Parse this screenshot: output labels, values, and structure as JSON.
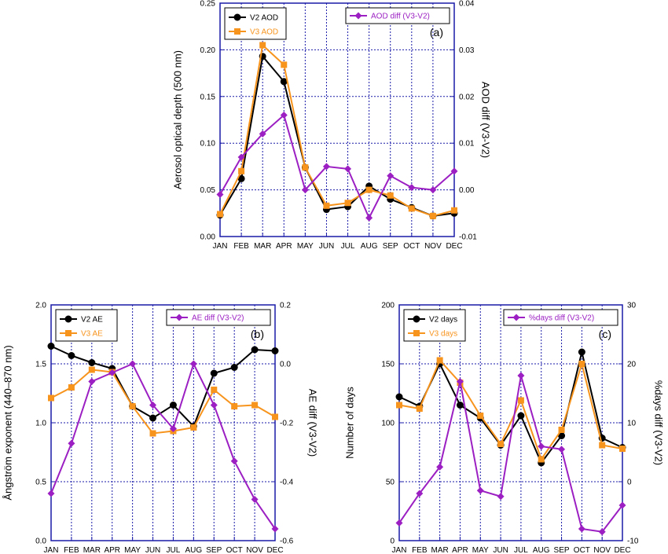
{
  "colors": {
    "v2": "#000000",
    "v3": "#f7941d",
    "diff": "#9b1fc2",
    "frame": "#1a1aa8",
    "grid": "#1a1aa8"
  },
  "chart_data": [
    {
      "type": "line",
      "panel_label": "(a)",
      "categories": [
        "JAN",
        "FEB",
        "MAR",
        "APR",
        "MAY",
        "JUN",
        "JUL",
        "AUG",
        "SEP",
        "OCT",
        "NOV",
        "DEC"
      ],
      "ylabel": "Aerosol optical depth (500 nm)",
      "y2label": "AOD diff (V3-V2)",
      "ylim": [
        0,
        0.25
      ],
      "y2lim": [
        -0.01,
        0.04
      ],
      "yticks": [
        "0.00",
        "0.05",
        "0.10",
        "0.15",
        "0.20",
        "0.25"
      ],
      "y2ticks": [
        "-0.01",
        "0.00",
        "0.01",
        "0.02",
        "0.03",
        "0.04"
      ],
      "legend_left": [
        "V2 AOD",
        "V3 AOD"
      ],
      "legend_right": "AOD diff (V3-V2)",
      "series": [
        {
          "name": "V2 AOD",
          "axis": "left",
          "marker": "circle",
          "color": "#000000",
          "values": [
            0.023,
            0.062,
            0.193,
            0.166,
            0.074,
            0.029,
            0.032,
            0.054,
            0.04,
            0.031,
            0.022,
            0.025
          ]
        },
        {
          "name": "V3 AOD",
          "axis": "left",
          "marker": "square",
          "color": "#f7941d",
          "values": [
            0.024,
            0.07,
            0.205,
            0.184,
            0.074,
            0.033,
            0.036,
            0.05,
            0.044,
            0.03,
            0.022,
            0.028
          ]
        },
        {
          "name": "AOD diff (V3-V2)",
          "axis": "right",
          "marker": "diamond",
          "color": "#9b1fc2",
          "values": [
            -0.001,
            0.007,
            0.012,
            0.016,
            0.0,
            0.005,
            0.0045,
            -0.006,
            0.003,
            0.0005,
            0.0,
            0.004
          ]
        }
      ]
    },
    {
      "type": "line",
      "panel_label": "(b)",
      "categories": [
        "JAN",
        "FEB",
        "MAR",
        "APR",
        "MAY",
        "JUN",
        "JUL",
        "AUG",
        "SEP",
        "OCT",
        "NOV",
        "DEC"
      ],
      "ylabel": "Ångström exponent (440–870 nm)",
      "y2label": "AE diff (V3-V2)",
      "ylim": [
        0,
        2.0
      ],
      "y2lim": [
        -0.6,
        0.2
      ],
      "yticks": [
        "0.0",
        "0.5",
        "1.0",
        "1.5",
        "2.0"
      ],
      "y2ticks": [
        "-0.6",
        "-0.4",
        "-0.2",
        "0.0",
        "0.2"
      ],
      "legend_left": [
        "V2 AE",
        "V3 AE"
      ],
      "legend_right": "AE diff (V3-V2)",
      "series": [
        {
          "name": "V2 AE",
          "axis": "left",
          "marker": "circle",
          "color": "#000000",
          "values": [
            1.65,
            1.57,
            1.51,
            1.46,
            1.14,
            1.04,
            1.15,
            0.97,
            1.42,
            1.47,
            1.62,
            1.61
          ]
        },
        {
          "name": "V3 AE",
          "axis": "left",
          "marker": "square",
          "color": "#f7941d",
          "values": [
            1.21,
            1.3,
            1.45,
            1.43,
            1.14,
            0.91,
            0.93,
            0.96,
            1.28,
            1.14,
            1.15,
            1.05
          ]
        },
        {
          "name": "AE diff (V3-V2)",
          "axis": "right",
          "marker": "diamond",
          "color": "#9b1fc2",
          "values": [
            -0.44,
            -0.27,
            -0.06,
            -0.03,
            0.0,
            -0.14,
            -0.22,
            0.0,
            -0.14,
            -0.33,
            -0.46,
            -0.56
          ]
        }
      ]
    },
    {
      "type": "line",
      "panel_label": "(c)",
      "categories": [
        "JAN",
        "FEB",
        "MAR",
        "APR",
        "MAY",
        "JUN",
        "JUL",
        "AUG",
        "SEP",
        "OCT",
        "NOV",
        "DEC"
      ],
      "ylabel": "Number of days",
      "y2label": "%days diff (V3-V2)",
      "ylim": [
        0,
        200
      ],
      "y2lim": [
        -10,
        30
      ],
      "yticks": [
        "0",
        "50",
        "100",
        "150",
        "200"
      ],
      "y2ticks": [
        "-10",
        "0",
        "10",
        "20",
        "30"
      ],
      "legend_left": [
        "V2 days",
        "V3 days"
      ],
      "legend_right": "%days diff (V3-V2)",
      "series": [
        {
          "name": "V2 days",
          "axis": "left",
          "marker": "circle",
          "color": "#000000",
          "values": [
            122,
            114,
            150,
            115,
            104,
            81,
            106,
            66,
            89,
            160,
            87,
            79
          ]
        },
        {
          "name": "V3 days",
          "axis": "left",
          "marker": "square",
          "color": "#f7941d",
          "values": [
            115,
            112,
            153,
            134,
            106,
            82,
            119,
            69,
            94,
            150,
            81,
            78
          ]
        },
        {
          "name": "%days diff (V3-V2)",
          "axis": "right",
          "marker": "diamond",
          "color": "#9b1fc2",
          "values": [
            -7,
            -2,
            2.5,
            17,
            -1.5,
            -2.5,
            18,
            6,
            5.5,
            -8,
            -8.5,
            -4
          ]
        }
      ]
    }
  ]
}
